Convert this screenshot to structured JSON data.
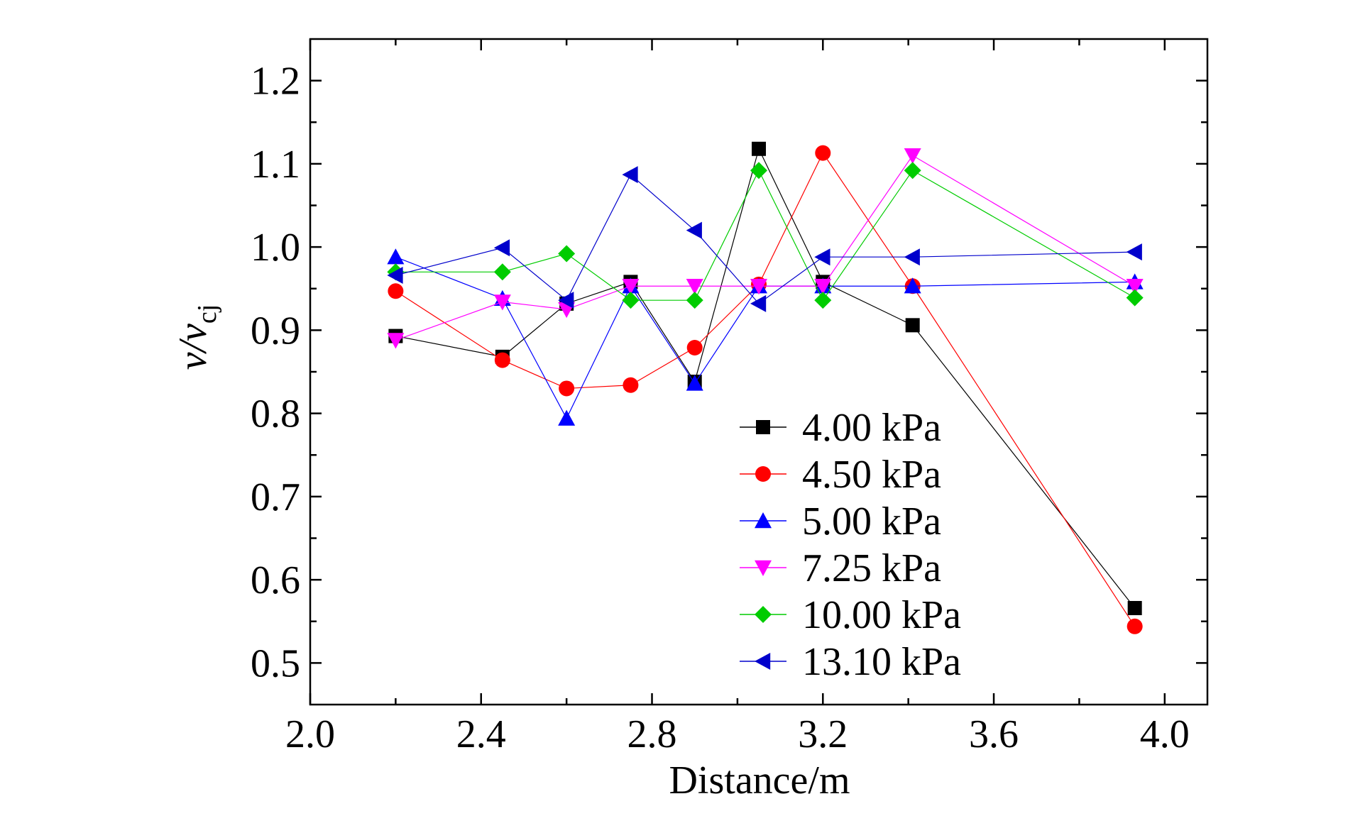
{
  "chart_data": {
    "type": "line",
    "xlabel": "Distance/m",
    "ylabel_main": "v/v",
    "ylabel_sub": "cj",
    "xlim": [
      2.0,
      4.1
    ],
    "ylim": [
      0.45,
      1.25
    ],
    "x_ticks": [
      "2.0",
      "2.4",
      "2.8",
      "3.2",
      "3.6",
      "4.0"
    ],
    "y_ticks": [
      "0.5",
      "0.6",
      "0.7",
      "0.8",
      "0.9",
      "1.0",
      "1.1",
      "1.2"
    ],
    "legend_position": "lower-right inside",
    "series": [
      {
        "name": "4.00 kPa",
        "color": "#000000",
        "marker": "square",
        "points": [
          [
            2.2,
            0.893
          ],
          [
            2.45,
            0.868
          ],
          [
            2.6,
            0.932
          ],
          [
            2.75,
            0.958
          ],
          [
            2.9,
            0.838
          ],
          [
            3.05,
            1.118
          ],
          [
            3.2,
            0.958
          ],
          [
            3.41,
            0.906
          ],
          [
            3.93,
            0.566
          ]
        ]
      },
      {
        "name": "4.50 kPa",
        "color": "#ff0000",
        "marker": "circle",
        "points": [
          [
            2.2,
            0.947
          ],
          [
            2.45,
            0.864
          ],
          [
            2.6,
            0.83
          ],
          [
            2.75,
            0.834
          ],
          [
            2.9,
            0.879
          ],
          [
            3.05,
            0.955
          ],
          [
            3.2,
            1.113
          ],
          [
            3.41,
            0.953
          ],
          [
            3.93,
            0.544
          ]
        ]
      },
      {
        "name": "5.00 kPa",
        "color": "#0000ff",
        "marker": "triangle-up",
        "points": [
          [
            2.2,
            0.988
          ],
          [
            2.45,
            0.938
          ],
          [
            2.6,
            0.794
          ],
          [
            2.75,
            0.953
          ],
          [
            2.9,
            0.836
          ],
          [
            3.05,
            0.953
          ],
          [
            3.2,
            0.953
          ],
          [
            3.41,
            0.953
          ],
          [
            3.93,
            0.958
          ]
        ]
      },
      {
        "name": "7.25 kPa",
        "color": "#ff00ff",
        "marker": "triangle-down",
        "points": [
          [
            2.2,
            0.888
          ],
          [
            2.45,
            0.934
          ],
          [
            2.6,
            0.925
          ],
          [
            2.75,
            0.953
          ],
          [
            2.9,
            0.953
          ],
          [
            3.05,
            0.953
          ],
          [
            3.2,
            0.953
          ],
          [
            3.41,
            1.11
          ],
          [
            3.93,
            0.953
          ]
        ]
      },
      {
        "name": "10.00 kPa",
        "color": "#00cc00",
        "marker": "diamond",
        "points": [
          [
            2.2,
            0.97
          ],
          [
            2.45,
            0.97
          ],
          [
            2.6,
            0.992
          ],
          [
            2.75,
            0.936
          ],
          [
            2.9,
            0.936
          ],
          [
            3.05,
            1.092
          ],
          [
            3.2,
            0.936
          ],
          [
            3.41,
            1.092
          ],
          [
            3.93,
            0.939
          ]
        ]
      },
      {
        "name": "13.10 kPa",
        "color": "#0000cc",
        "marker": "triangle-left",
        "points": [
          [
            2.2,
            0.966
          ],
          [
            2.45,
            0.999
          ],
          [
            2.6,
            0.936
          ],
          [
            2.75,
            1.087
          ],
          [
            2.9,
            1.02
          ],
          [
            3.05,
            0.932
          ],
          [
            3.2,
            0.988
          ],
          [
            3.41,
            0.988
          ],
          [
            3.93,
            0.994
          ]
        ]
      }
    ]
  }
}
